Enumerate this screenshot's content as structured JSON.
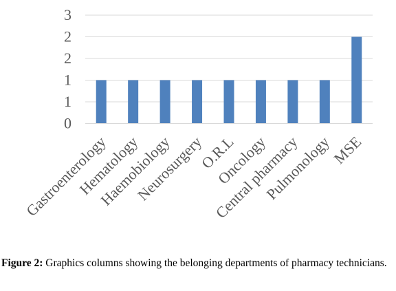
{
  "chart_data": {
    "type": "bar",
    "categories": [
      "Gastroenterology",
      "Hematology",
      "Haemobiology",
      "Neurosurgery",
      "O.R.L",
      "Oncology",
      "Central pharmacy",
      "Pulmonology",
      "MSE"
    ],
    "values": [
      1,
      1,
      1,
      1,
      1,
      1,
      1,
      1,
      2
    ],
    "y_tick_labels": [
      "0",
      "1",
      "1",
      "2",
      "2",
      "3"
    ],
    "ylim": [
      0,
      2.5
    ],
    "grid": true,
    "bar_color": "#4f81bd",
    "grid_color": "#d9d9d9",
    "title": "",
    "xlabel": "",
    "ylabel": ""
  },
  "caption": {
    "label": "Figure 2:",
    "text": " Graphics columns showing the belonging departments of pharmacy technicians."
  }
}
